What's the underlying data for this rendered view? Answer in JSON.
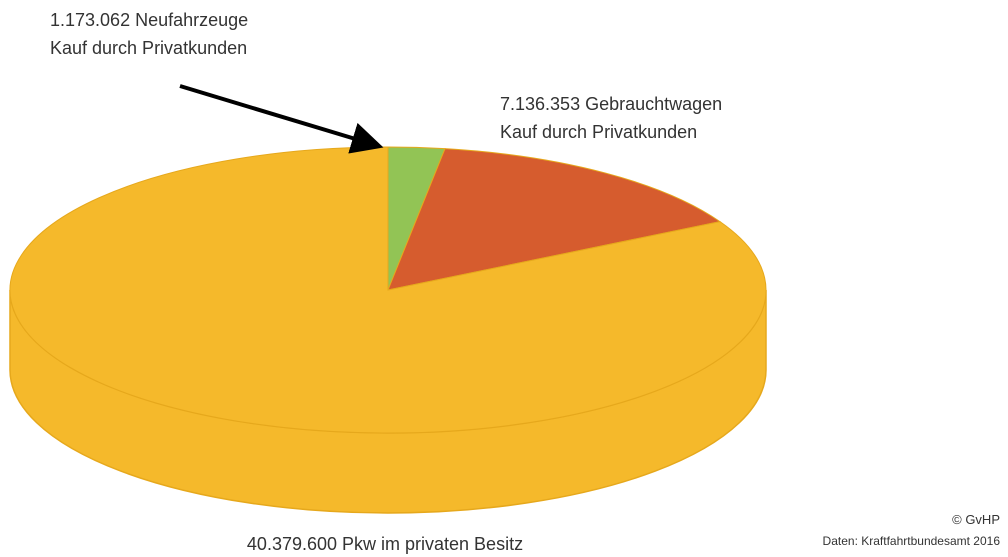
{
  "chart_data": {
    "type": "pie",
    "categories": [
      "Neufahrzeuge",
      "Gebrauchtwagen",
      "Pkw im privaten Besitz"
    ],
    "category_notes": [
      "Kauf durch Privatkunden",
      "Kauf durch Privatkunden",
      null
    ],
    "values": [
      1173062,
      7136353,
      40379600
    ],
    "value_labels": [
      "1.173.062",
      "7.136.353",
      "40.379.600"
    ],
    "colors": [
      "#92c455",
      "#d65c2e",
      "#f5b92b"
    ],
    "notes": [
      "© GvHP",
      "Daten: Kraftfahrtbundesamt 2016"
    ]
  }
}
